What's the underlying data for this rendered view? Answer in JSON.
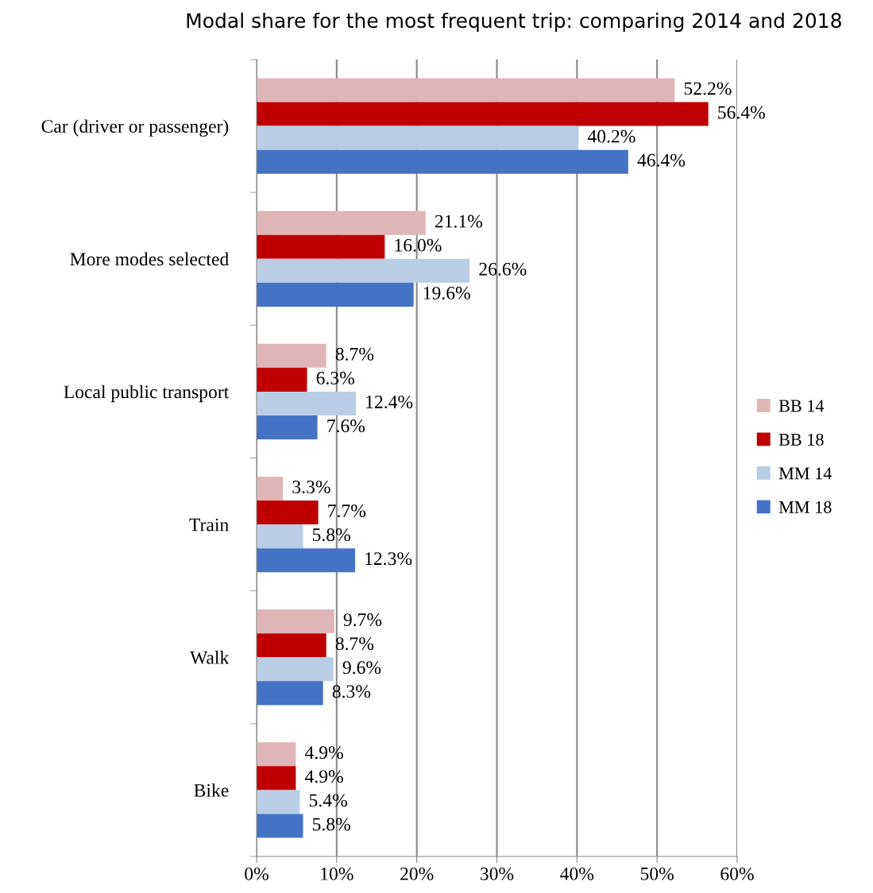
{
  "chart_data": {
    "type": "bar",
    "orientation": "horizontal",
    "title": "Modal share for the most frequent trip: comparing 2014 and 2018",
    "categories": [
      "Car (driver or passenger)",
      "More modes selected",
      "Local public transport",
      "Train",
      "Walk",
      "Bike"
    ],
    "series": [
      {
        "name": "BB 14",
        "color": "#dfb6b7",
        "values": [
          52.2,
          21.1,
          8.7,
          3.3,
          9.7,
          4.9
        ],
        "value_labels": [
          "52.2%",
          "21.1%",
          "8.7%",
          "3.3%",
          "9.7%",
          "4.9%"
        ]
      },
      {
        "name": "BB 18",
        "color": "#c00000",
        "values": [
          56.4,
          16.0,
          6.3,
          7.7,
          8.7,
          4.9
        ],
        "value_labels": [
          "56.4%",
          "16.0%",
          "6.3%",
          "7.7%",
          "8.7%",
          "4.9%"
        ]
      },
      {
        "name": "MM 14",
        "color": "#b9cde5",
        "values": [
          40.2,
          26.6,
          12.4,
          5.8,
          9.6,
          5.4
        ],
        "value_labels": [
          "40.2%",
          "26.6%",
          "12.4%",
          "5.8%",
          "9.6%",
          "5.4%"
        ]
      },
      {
        "name": "MM 18",
        "color": "#4472c4",
        "values": [
          46.4,
          19.6,
          7.6,
          12.3,
          8.3,
          5.8
        ],
        "value_labels": [
          "46.4%",
          "19.6%",
          "7.6%",
          "12.3%",
          "8.3%",
          "5.8%"
        ]
      }
    ],
    "xlim": [
      0,
      60
    ],
    "xticks": [
      {
        "value": 0,
        "label": "0%"
      },
      {
        "value": 10,
        "label": "10%"
      },
      {
        "value": 20,
        "label": "20%"
      },
      {
        "value": 30,
        "label": "30%"
      },
      {
        "value": 40,
        "label": "40%"
      },
      {
        "value": 50,
        "label": "50%"
      },
      {
        "value": 60,
        "label": "60%"
      }
    ],
    "grid": "x",
    "legend": "right"
  }
}
